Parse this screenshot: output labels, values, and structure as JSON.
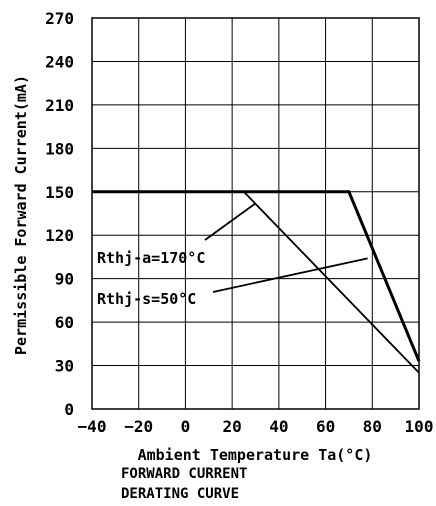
{
  "chart_data": {
    "type": "line",
    "xlabel": "Ambient Temperature Ta(°C)",
    "ylabel": "Permissible Forward Current(mA)",
    "xlim": [
      -40,
      100
    ],
    "ylim": [
      0,
      270
    ],
    "x_ticks": [
      -40,
      -20,
      0,
      20,
      40,
      60,
      80,
      100
    ],
    "x_tick_labels": [
      "−40",
      "−20",
      "0",
      "20",
      "40",
      "60",
      "80",
      "100"
    ],
    "y_ticks": [
      0,
      30,
      60,
      90,
      120,
      150,
      180,
      210,
      240,
      270
    ],
    "grid": true,
    "series": [
      {
        "name": "Rthj-a=170°C",
        "x": [
          -40,
          25,
          100
        ],
        "y": [
          150,
          150,
          25
        ],
        "weight": "thin"
      },
      {
        "name": "Rthj-s=50°C",
        "x": [
          -40,
          70,
          100
        ],
        "y": [
          150,
          150,
          33
        ],
        "weight": "thick"
      }
    ],
    "annotations": [
      {
        "text": "Rthj-a=170°C",
        "target_series": 0,
        "pointer_at": [
          30,
          142
        ]
      },
      {
        "text": "Rthj-s=50°C",
        "target_series": 1,
        "pointer_at": [
          78,
          104
        ]
      }
    ]
  },
  "caption": {
    "line1": "FORWARD CURRENT",
    "line2": "DERATING CURVE"
  }
}
